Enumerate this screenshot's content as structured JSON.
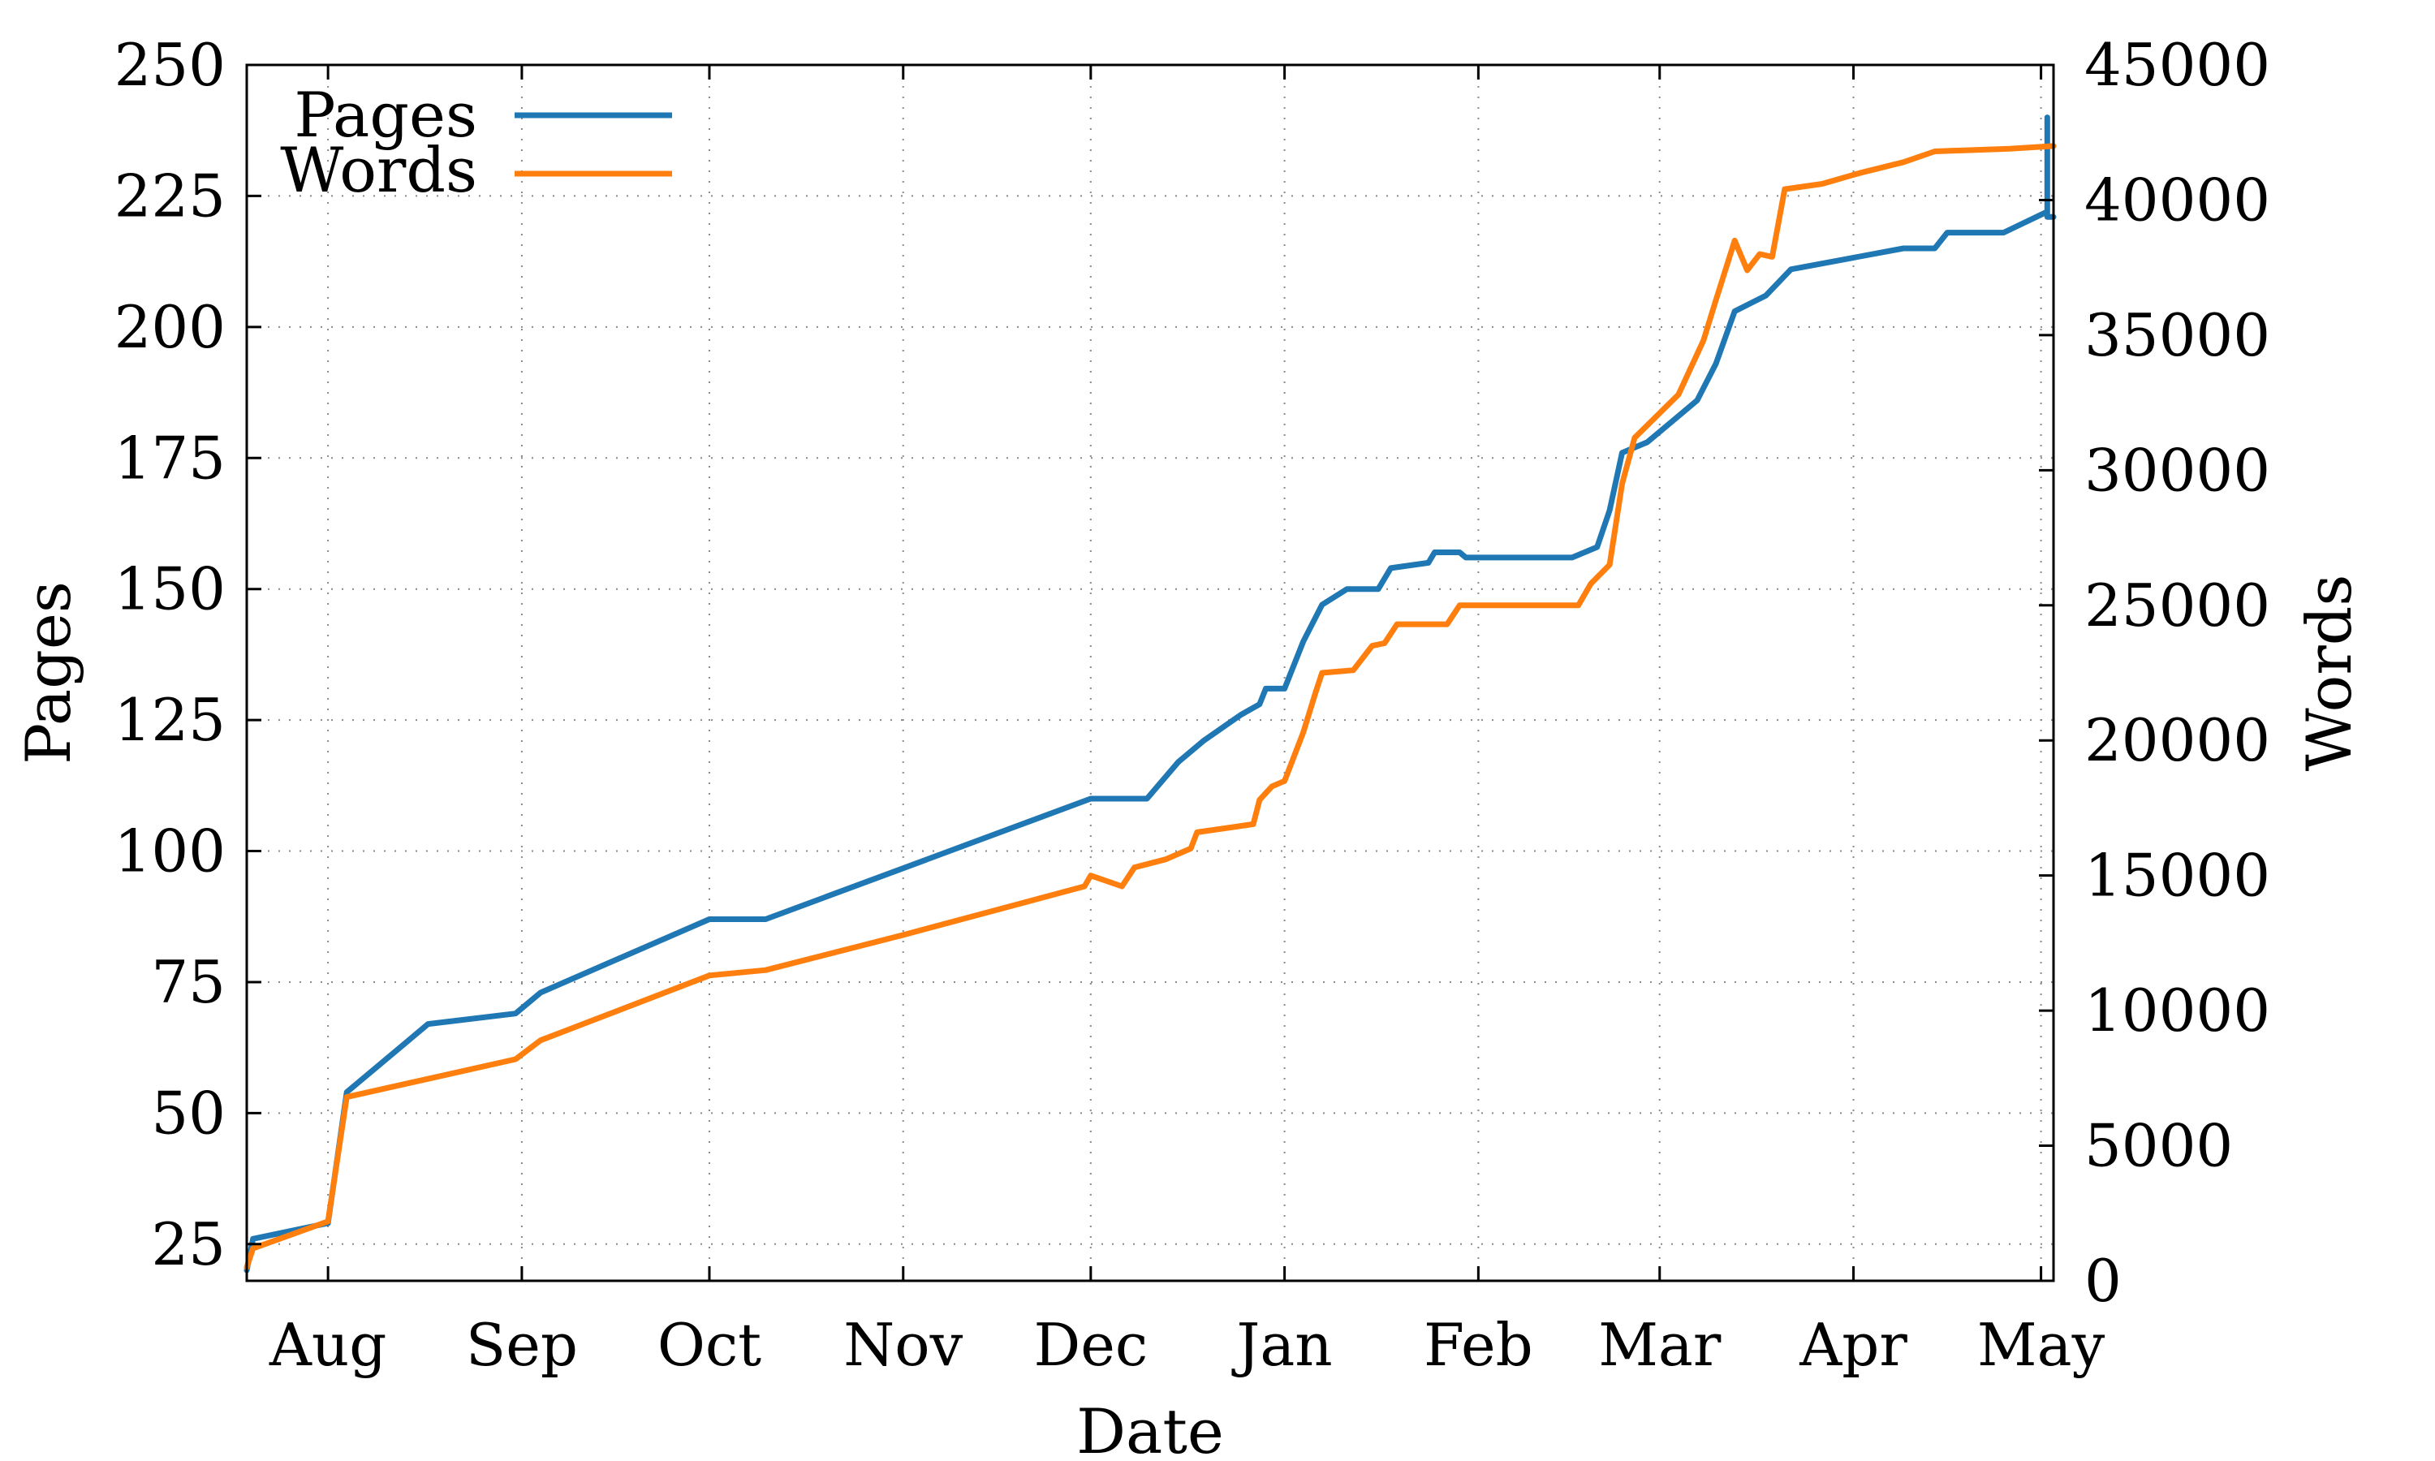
{
  "chart_data": {
    "type": "line",
    "xlabel": "Date",
    "ylabel_left": "Pages",
    "ylabel_right": "Words",
    "x_tick_labels": [
      "Aug",
      "Sep",
      "Oct",
      "Nov",
      "Dec",
      "Jan",
      "Feb",
      "Mar",
      "Apr",
      "May"
    ],
    "x_tick_dates": [
      "2019-08-01",
      "2019-09-01",
      "2019-10-01",
      "2019-11-01",
      "2019-12-01",
      "2020-01-01",
      "2020-02-01",
      "2020-03-01",
      "2020-04-01",
      "2020-05-01"
    ],
    "xlim": [
      "2019-07-19",
      "2020-05-03"
    ],
    "ylim_left": [
      18,
      250
    ],
    "yticks_left": [
      25,
      50,
      75,
      100,
      125,
      150,
      175,
      200,
      225,
      250
    ],
    "ylim_right": [
      0,
      45000
    ],
    "yticks_right": [
      0,
      5000,
      10000,
      15000,
      20000,
      25000,
      30000,
      35000,
      40000,
      45000
    ],
    "grid": true,
    "legend_position": "top-left",
    "series": [
      {
        "name": "Pages",
        "axis": "left",
        "color": "#1f77b4",
        "points": [
          [
            "2019-07-19",
            20
          ],
          [
            "2019-07-20",
            26
          ],
          [
            "2019-08-01",
            29
          ],
          [
            "2019-08-04",
            54
          ],
          [
            "2019-08-17",
            67
          ],
          [
            "2019-08-31",
            69
          ],
          [
            "2019-09-04",
            73
          ],
          [
            "2019-10-01",
            87
          ],
          [
            "2019-10-10",
            87
          ],
          [
            "2019-12-01",
            110
          ],
          [
            "2019-12-10",
            110
          ],
          [
            "2019-12-15",
            117
          ],
          [
            "2019-12-19",
            121
          ],
          [
            "2019-12-25",
            126
          ],
          [
            "2019-12-28",
            128
          ],
          [
            "2019-12-29",
            131
          ],
          [
            "2020-01-01",
            131
          ],
          [
            "2020-01-04",
            140
          ],
          [
            "2020-01-07",
            147
          ],
          [
            "2020-01-11",
            150
          ],
          [
            "2020-01-16",
            150
          ],
          [
            "2020-01-18",
            154
          ],
          [
            "2020-01-24",
            155
          ],
          [
            "2020-01-25",
            157
          ],
          [
            "2020-01-29",
            157
          ],
          [
            "2020-01-30",
            156
          ],
          [
            "2020-02-16",
            156
          ],
          [
            "2020-02-20",
            158
          ],
          [
            "2020-02-22",
            165
          ],
          [
            "2020-02-24",
            176
          ],
          [
            "2020-02-28",
            178
          ],
          [
            "2020-03-03",
            182
          ],
          [
            "2020-03-07",
            186
          ],
          [
            "2020-03-10",
            193
          ],
          [
            "2020-03-13",
            203
          ],
          [
            "2020-03-18",
            206
          ],
          [
            "2020-03-22",
            211
          ],
          [
            "2020-03-31",
            213
          ],
          [
            "2020-04-09",
            215
          ],
          [
            "2020-04-14",
            215
          ],
          [
            "2020-04-16",
            218
          ],
          [
            "2020-04-25",
            218
          ],
          [
            "2020-05-02",
            222
          ],
          [
            "2020-05-02",
            240
          ],
          [
            "2020-05-02",
            221
          ],
          [
            "2020-05-03",
            221
          ]
        ]
      },
      {
        "name": "Words",
        "axis": "right",
        "color": "#ff7f0e",
        "points": [
          [
            "2019-07-19",
            500
          ],
          [
            "2019-07-20",
            1200
          ],
          [
            "2019-08-01",
            2200
          ],
          [
            "2019-08-04",
            6800
          ],
          [
            "2019-08-31",
            8200
          ],
          [
            "2019-09-04",
            8900
          ],
          [
            "2019-10-01",
            11300
          ],
          [
            "2019-10-10",
            11500
          ],
          [
            "2019-11-01",
            12800
          ],
          [
            "2019-11-30",
            14600
          ],
          [
            "2019-12-01",
            15000
          ],
          [
            "2019-12-06",
            14600
          ],
          [
            "2019-12-08",
            15300
          ],
          [
            "2019-12-13",
            15600
          ],
          [
            "2019-12-17",
            16000
          ],
          [
            "2019-12-18",
            16600
          ],
          [
            "2019-12-27",
            16900
          ],
          [
            "2019-12-28",
            17800
          ],
          [
            "2019-12-30",
            18300
          ],
          [
            "2020-01-01",
            18500
          ],
          [
            "2020-01-04",
            20300
          ],
          [
            "2020-01-06",
            21800
          ],
          [
            "2020-01-07",
            22500
          ],
          [
            "2020-01-12",
            22600
          ],
          [
            "2020-01-15",
            23500
          ],
          [
            "2020-01-17",
            23600
          ],
          [
            "2020-01-19",
            24300
          ],
          [
            "2020-01-27",
            24300
          ],
          [
            "2020-01-29",
            25000
          ],
          [
            "2020-02-17",
            25000
          ],
          [
            "2020-02-19",
            25800
          ],
          [
            "2020-02-22",
            26500
          ],
          [
            "2020-02-24",
            29500
          ],
          [
            "2020-02-26",
            31200
          ],
          [
            "2020-03-04",
            32800
          ],
          [
            "2020-03-08",
            34800
          ],
          [
            "2020-03-10",
            36300
          ],
          [
            "2020-03-13",
            38500
          ],
          [
            "2020-03-15",
            37400
          ],
          [
            "2020-03-17",
            38000
          ],
          [
            "2020-03-19",
            37900
          ],
          [
            "2020-03-21",
            40400
          ],
          [
            "2020-03-27",
            40600
          ],
          [
            "2020-04-02",
            41000
          ],
          [
            "2020-04-09",
            41400
          ],
          [
            "2020-04-14",
            41800
          ],
          [
            "2020-04-26",
            41900
          ],
          [
            "2020-05-03",
            42000
          ]
        ]
      }
    ]
  }
}
